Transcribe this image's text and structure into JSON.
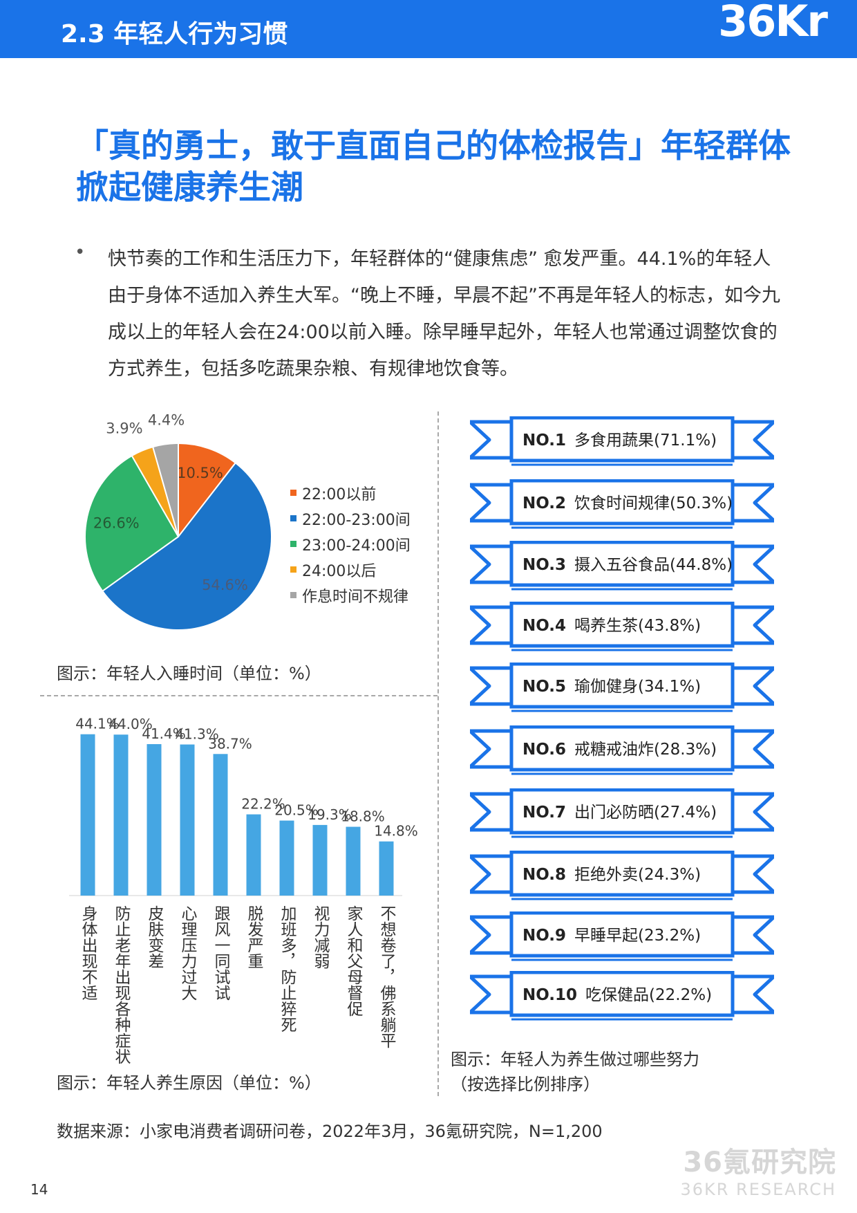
{
  "header": {
    "title": "2.3 年轻人行为习惯",
    "logo": "36Kr"
  },
  "main_title": "「真的勇士，敢于直面自己的体检报告」年轻群体掀起健康养生潮",
  "intro": {
    "bullet": "•",
    "text": "快节奏的工作和生活压力下，年轻群体的“健康焦虑” 愈发严重。44.1%的年轻人由于身体不适加入养生大军。“晚上不睡，早晨不起”不再是年轻人的标志，如今九成以上的年轻人会在24:00以前入睡。除早睡早起外，年轻人也常通过调整饮食的方式养生，包括多吃蔬果杂粮、有规律地饮食等。"
  },
  "chart_data": [
    {
      "type": "pie",
      "categories": [
        "22:00以前",
        "22:00-23:00间",
        "23:00-24:00间",
        "24:00以后",
        "作息时间不规律"
      ],
      "values": [
        10.5,
        54.6,
        26.6,
        3.9,
        4.4
      ],
      "labels": [
        "10.5%",
        "54.6%",
        "26.6%",
        "3.9%",
        "4.4%"
      ],
      "colors": [
        "#f0651e",
        "#1b74c9",
        "#2eb36a",
        "#f5a31a",
        "#a5a5a5"
      ],
      "legend": "right",
      "caption": "图示：年轻人入睡时间（单位：%）"
    },
    {
      "type": "bar",
      "categories": [
        "身体出现不适",
        "防止老年出现各种症状",
        "皮肤变差",
        "心理压力过大",
        "跟风一同试试",
        "脱发严重",
        "加班多，防止猝死",
        "视力减弱",
        "家人和父母督促",
        "不想卷了，佛系躺平"
      ],
      "values": [
        44.1,
        44.0,
        41.4,
        41.3,
        38.7,
        22.2,
        20.5,
        19.3,
        18.8,
        14.8
      ],
      "labels": [
        "44.1%",
        "44.0%",
        "41.4%",
        "41.3%",
        "38.7%",
        "22.2%",
        "20.5%",
        "19.3%",
        "18.8%",
        "14.8%"
      ],
      "color": "#45a6e3",
      "caption": "图示：年轻人养生原因（单位：%）"
    },
    {
      "type": "table",
      "items": [
        {
          "rank": "NO.1",
          "text": "多食用蔬果(71.1%)",
          "value": 71.1
        },
        {
          "rank": "NO.2",
          "text": "饮食时间规律(50.3%)",
          "value": 50.3
        },
        {
          "rank": "NO.3",
          "text": "摄入五谷食品(44.8%)",
          "value": 44.8
        },
        {
          "rank": "NO.4",
          "text": "喝养生茶(43.8%)",
          "value": 43.8
        },
        {
          "rank": "NO.5",
          "text": "瑜伽健身(34.1%)",
          "value": 34.1
        },
        {
          "rank": "NO.6",
          "text": "戒糖戒油炸(28.3%)",
          "value": 28.3
        },
        {
          "rank": "NO.7",
          "text": "出门必防晒(27.4%)",
          "value": 27.4
        },
        {
          "rank": "NO.8",
          "text": "拒绝外卖(24.3%)",
          "value": 24.3
        },
        {
          "rank": "NO.9",
          "text": "早睡早起(23.2%)",
          "value": 23.2
        },
        {
          "rank": "NO.10",
          "text": "吃保健品(22.2%)",
          "value": 22.2
        }
      ],
      "color": "#1a73e8",
      "caption_line1": "图示：年轻人为养生做过哪些努力",
      "caption_line2": "（按选择比例排序）"
    }
  ],
  "source": "数据来源：小家电消费者调研问卷，2022年3月，36氪研究院，N=1,200",
  "page_number": "14",
  "watermark": {
    "main": "36氪研究院",
    "sub": "36KR RESEARCH"
  }
}
